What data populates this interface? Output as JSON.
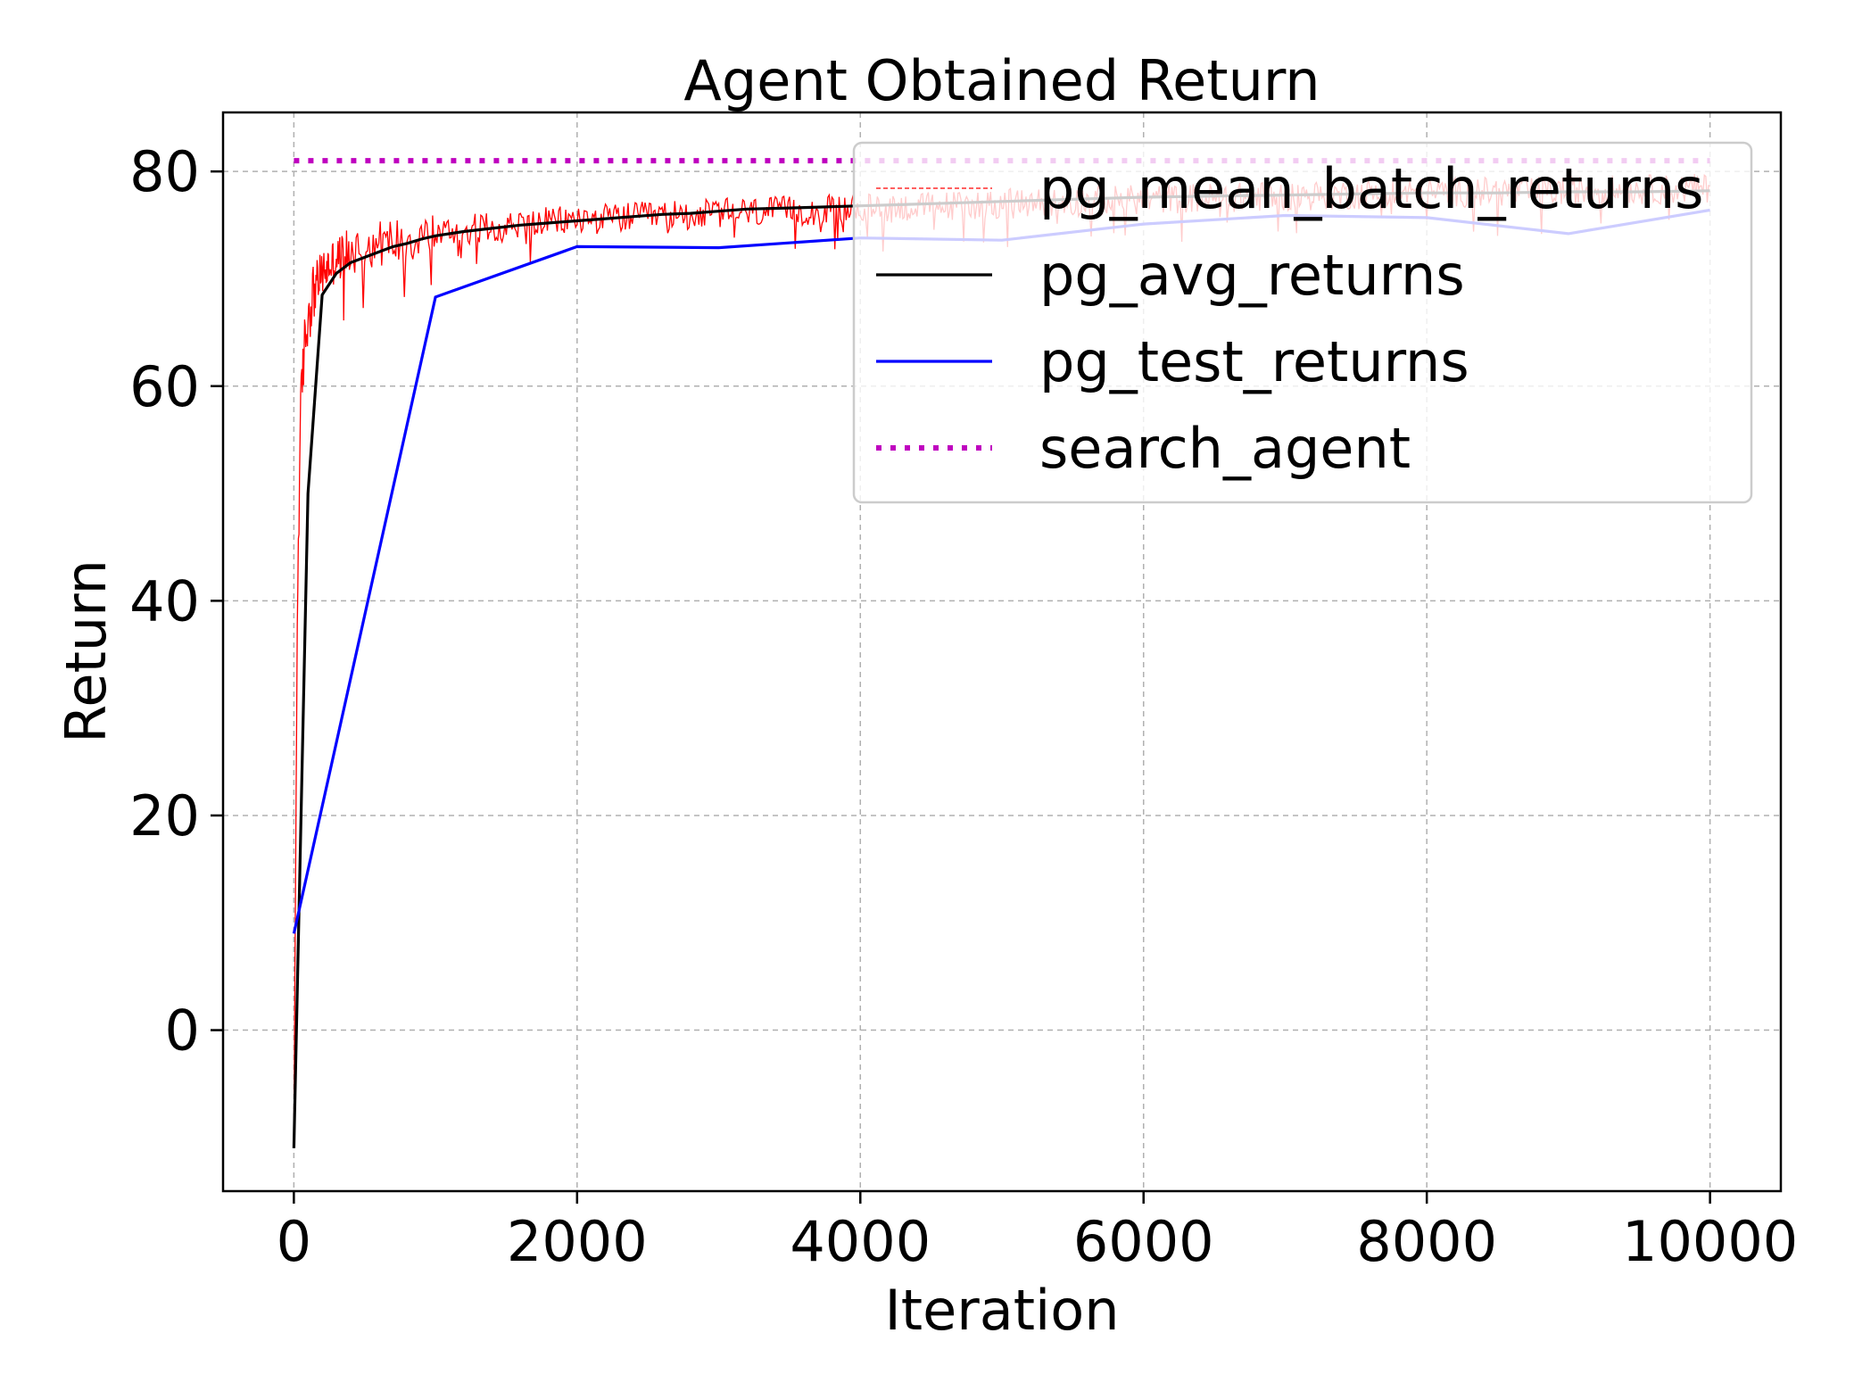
{
  "chart_data": {
    "type": "line",
    "title": "Agent Obtained Return",
    "xlabel": "Iteration",
    "ylabel": "Return",
    "xlim": [
      -500,
      10500
    ],
    "ylim": [
      -15,
      85.5
    ],
    "xticks": [
      0,
      2000,
      4000,
      6000,
      8000,
      10000
    ],
    "xtick_labels": [
      "0",
      "2000",
      "4000",
      "6000",
      "8000",
      "10000"
    ],
    "yticks": [
      0,
      20,
      40,
      60,
      80
    ],
    "ytick_labels": [
      "0",
      "20",
      "40",
      "60",
      "80"
    ],
    "grid": true,
    "legend_position": "top-right",
    "series": [
      {
        "name": "pg_mean_batch_returns",
        "color": "#ff0000",
        "style": "dashed-noisy",
        "x": [
          0,
          5,
          10,
          20,
          30,
          50,
          70,
          100,
          130,
          160,
          200,
          250,
          300,
          400,
          500,
          600,
          800,
          1000,
          1200,
          1500,
          2000,
          2500,
          3000,
          3500,
          4000,
          5000,
          6000,
          7000,
          8000,
          9000,
          10000
        ],
        "values": [
          -10,
          0,
          10,
          30,
          45,
          58,
          63,
          66.5,
          68.5,
          69.5,
          70.5,
          71.2,
          71.8,
          72.5,
          73,
          73.3,
          73.8,
          74.2,
          74.6,
          75,
          75.5,
          75.8,
          76.1,
          76.3,
          76.5,
          77,
          77.4,
          77.7,
          78,
          78.2,
          78.4
        ]
      },
      {
        "name": "pg_avg_returns",
        "color": "#000000",
        "style": "solid",
        "x": [
          0,
          100,
          200,
          300,
          400,
          500,
          600,
          700,
          800,
          900,
          1000,
          1200,
          1400,
          1600,
          1800,
          2000,
          2200,
          2400,
          2600,
          2800,
          3000,
          3200,
          3500,
          4000,
          4500,
          5000,
          5500,
          6000,
          6500,
          7000,
          7500,
          8000,
          8500,
          9000,
          9500,
          10000
        ],
        "values": [
          -11,
          50,
          68.5,
          70.5,
          71.5,
          72,
          72.5,
          73,
          73.3,
          73.7,
          74,
          74.4,
          74.7,
          75,
          75.2,
          75.4,
          75.6,
          75.8,
          76,
          76.1,
          76.3,
          76.5,
          76.6,
          76.8,
          77,
          77.2,
          77.4,
          77.6,
          77.7,
          77.8,
          77.9,
          78,
          78,
          78.1,
          78.1,
          78.2
        ]
      },
      {
        "name": "pg_test_returns",
        "color": "#0000ff",
        "style": "solid",
        "x": [
          0,
          1000,
          2000,
          3000,
          4000,
          5000,
          6000,
          7000,
          8000,
          9000,
          10000
        ],
        "values": [
          9,
          68.3,
          73,
          72.9,
          73.8,
          73.6,
          75.1,
          75.9,
          75.7,
          74.2,
          76.4
        ]
      },
      {
        "name": "search_agent",
        "color": "#bf00bf",
        "style": "dotted",
        "x": [
          0,
          10000
        ],
        "values": [
          81,
          81
        ]
      }
    ]
  }
}
